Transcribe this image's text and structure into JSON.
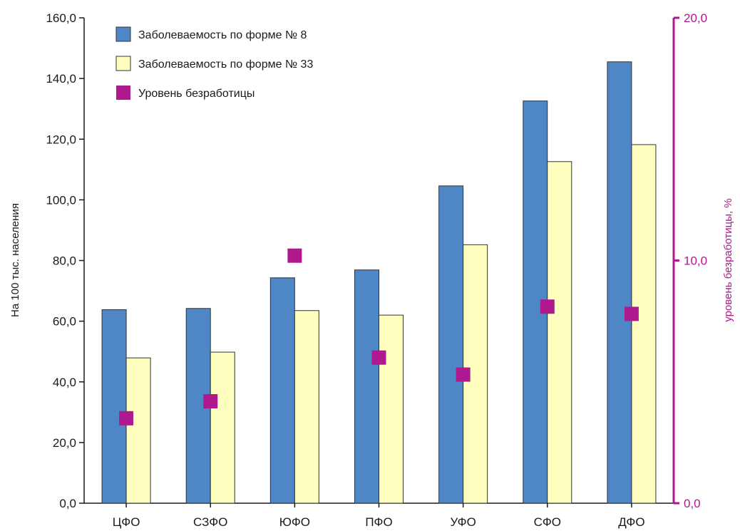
{
  "chart_data": {
    "type": "bar",
    "categories": [
      "ЦФО",
      "СЗФО",
      "ЮФО",
      "ПФО",
      "УФО",
      "СФО",
      "ДФО"
    ],
    "series": [
      {
        "name": "Заболеваемость по форме № 8",
        "type": "bar",
        "axis": "left",
        "color": "#4f86c6",
        "values": [
          63.8,
          64.2,
          74.3,
          76.9,
          104.6,
          132.6,
          145.5
        ]
      },
      {
        "name": "Заболеваемость по форме № 33",
        "type": "bar",
        "axis": "left",
        "color": "#ffffc0",
        "values": [
          47.9,
          49.8,
          63.5,
          62.0,
          85.2,
          112.6,
          118.2
        ]
      },
      {
        "name": "Уровень безработицы",
        "type": "marker",
        "axis": "right",
        "color": "#b0198e",
        "values": [
          3.5,
          4.2,
          10.2,
          6.0,
          5.3,
          8.1,
          7.8
        ]
      }
    ],
    "ylabel": "На 100 тыс. населения",
    "ylabel_right": "уровень безработицы, %",
    "ylim": [
      0,
      160
    ],
    "ylim_right": [
      0,
      20
    ],
    "yticks": [
      "0,0",
      "20,0",
      "40,0",
      "60,0",
      "80,0",
      "100,0",
      "120,0",
      "140,0",
      "160,0"
    ],
    "yticks_right": [
      "0,0",
      "10,0",
      "20,0"
    ],
    "grid": false,
    "legend": "top-left",
    "colors": {
      "axis_right": "#b0198e",
      "axis_left": "#1a1a1a",
      "bar_stroke": "#333333"
    }
  }
}
